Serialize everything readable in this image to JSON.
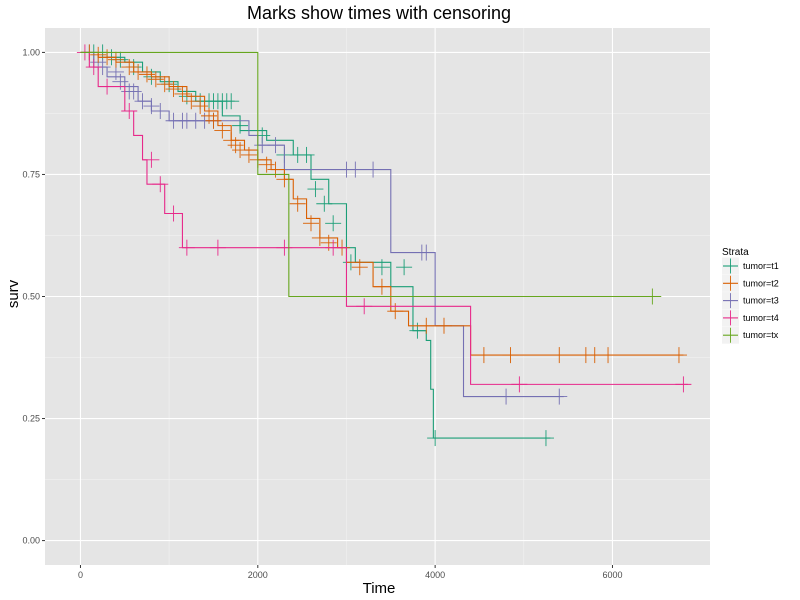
{
  "chart_data": {
    "type": "line",
    "title": "Marks show times with censoring",
    "xlabel": "Time",
    "ylabel": "surv",
    "xlim": [
      -400,
      7100
    ],
    "ylim": [
      -0.05,
      1.05
    ],
    "x_ticks": [
      0,
      2000,
      4000,
      6000
    ],
    "x_tick_labels": [
      "0",
      "2000",
      "4000",
      "6000"
    ],
    "y_ticks": [
      0,
      0.25,
      0.5,
      0.75,
      1.0
    ],
    "y_tick_labels": [
      "0.00",
      "0.25",
      "0.50",
      "0.75",
      "1.00"
    ],
    "grid": true,
    "legend": {
      "title": "Strata",
      "position": "right"
    },
    "series": [
      {
        "name": "tumor=t1",
        "color": "#1b9e77",
        "steps": [
          [
            0,
            1.0
          ],
          [
            300,
            0.99
          ],
          [
            500,
            0.98
          ],
          [
            700,
            0.96
          ],
          [
            900,
            0.94
          ],
          [
            1100,
            0.92
          ],
          [
            1300,
            0.9
          ],
          [
            1600,
            0.87
          ],
          [
            1800,
            0.84
          ],
          [
            2100,
            0.82
          ],
          [
            2400,
            0.79
          ],
          [
            2600,
            0.74
          ],
          [
            2800,
            0.69
          ],
          [
            3000,
            0.6
          ],
          [
            3100,
            0.57
          ],
          [
            3500,
            0.52
          ],
          [
            3750,
            0.43
          ],
          [
            3900,
            0.41
          ],
          [
            3950,
            0.31
          ],
          [
            3980,
            0.21
          ],
          [
            5300,
            0.21
          ]
        ],
        "censor": [
          [
            150,
            1.0
          ],
          [
            250,
            1.0
          ],
          [
            350,
            0.99
          ],
          [
            450,
            0.985
          ],
          [
            600,
            0.97
          ],
          [
            800,
            0.95
          ],
          [
            1000,
            0.935
          ],
          [
            1200,
            0.91
          ],
          [
            1350,
            0.9
          ],
          [
            1450,
            0.9
          ],
          [
            1500,
            0.9
          ],
          [
            1550,
            0.9
          ],
          [
            1600,
            0.9
          ],
          [
            1650,
            0.9
          ],
          [
            1700,
            0.9
          ],
          [
            1800,
            0.85
          ],
          [
            2050,
            0.83
          ],
          [
            2300,
            0.79
          ],
          [
            2450,
            0.79
          ],
          [
            2550,
            0.79
          ],
          [
            2650,
            0.72
          ],
          [
            2750,
            0.69
          ],
          [
            2850,
            0.65
          ],
          [
            3050,
            0.57
          ],
          [
            3400,
            0.56
          ],
          [
            3650,
            0.56
          ],
          [
            3800,
            0.43
          ],
          [
            4000,
            0.21
          ],
          [
            5250,
            0.21
          ]
        ]
      },
      {
        "name": "tumor=t2",
        "color": "#d95f02",
        "steps": [
          [
            0,
            1.0
          ],
          [
            200,
            0.99
          ],
          [
            400,
            0.98
          ],
          [
            600,
            0.96
          ],
          [
            800,
            0.95
          ],
          [
            1000,
            0.93
          ],
          [
            1200,
            0.91
          ],
          [
            1400,
            0.88
          ],
          [
            1550,
            0.85
          ],
          [
            1700,
            0.82
          ],
          [
            1850,
            0.8
          ],
          [
            2000,
            0.78
          ],
          [
            2150,
            0.76
          ],
          [
            2300,
            0.74
          ],
          [
            2400,
            0.7
          ],
          [
            2550,
            0.66
          ],
          [
            2700,
            0.62
          ],
          [
            2900,
            0.6
          ],
          [
            3000,
            0.57
          ],
          [
            3300,
            0.52
          ],
          [
            3500,
            0.47
          ],
          [
            3700,
            0.44
          ],
          [
            4100,
            0.44
          ],
          [
            4400,
            0.38
          ],
          [
            6800,
            0.38
          ]
        ],
        "censor": [
          [
            100,
            1.0
          ],
          [
            200,
            0.995
          ],
          [
            300,
            0.99
          ],
          [
            400,
            0.985
          ],
          [
            550,
            0.97
          ],
          [
            650,
            0.96
          ],
          [
            750,
            0.955
          ],
          [
            850,
            0.945
          ],
          [
            950,
            0.935
          ],
          [
            1050,
            0.925
          ],
          [
            1150,
            0.915
          ],
          [
            1250,
            0.9
          ],
          [
            1350,
            0.89
          ],
          [
            1450,
            0.87
          ],
          [
            1500,
            0.86
          ],
          [
            1600,
            0.84
          ],
          [
            1700,
            0.82
          ],
          [
            1750,
            0.81
          ],
          [
            1800,
            0.8
          ],
          [
            1900,
            0.79
          ],
          [
            2000,
            0.78
          ],
          [
            2100,
            0.77
          ],
          [
            2200,
            0.76
          ],
          [
            2300,
            0.74
          ],
          [
            2450,
            0.69
          ],
          [
            2600,
            0.65
          ],
          [
            2700,
            0.62
          ],
          [
            2800,
            0.61
          ],
          [
            2950,
            0.6
          ],
          [
            3150,
            0.56
          ],
          [
            3400,
            0.52
          ],
          [
            3550,
            0.47
          ],
          [
            3900,
            0.44
          ],
          [
            4100,
            0.44
          ],
          [
            4550,
            0.38
          ],
          [
            4850,
            0.38
          ],
          [
            5400,
            0.38
          ],
          [
            5700,
            0.38
          ],
          [
            5800,
            0.38
          ],
          [
            5950,
            0.38
          ],
          [
            6750,
            0.38
          ]
        ]
      },
      {
        "name": "tumor=t3",
        "color": "#7570b3",
        "steps": [
          [
            0,
            1.0
          ],
          [
            150,
            0.97
          ],
          [
            300,
            0.95
          ],
          [
            500,
            0.93
          ],
          [
            650,
            0.9
          ],
          [
            800,
            0.88
          ],
          [
            1000,
            0.86
          ],
          [
            1900,
            0.83
          ],
          [
            2000,
            0.81
          ],
          [
            2300,
            0.76
          ],
          [
            3450,
            0.76
          ],
          [
            3500,
            0.59
          ],
          [
            3950,
            0.59
          ],
          [
            4000,
            0.44
          ],
          [
            4300,
            0.44
          ],
          [
            4320,
            0.295
          ],
          [
            5450,
            0.295
          ]
        ],
        "censor": [
          [
            100,
            1.0
          ],
          [
            200,
            0.98
          ],
          [
            250,
            0.97
          ],
          [
            400,
            0.96
          ],
          [
            450,
            0.94
          ],
          [
            550,
            0.92
          ],
          [
            600,
            0.92
          ],
          [
            700,
            0.9
          ],
          [
            800,
            0.89
          ],
          [
            900,
            0.88
          ],
          [
            1050,
            0.86
          ],
          [
            1150,
            0.86
          ],
          [
            1200,
            0.86
          ],
          [
            1300,
            0.86
          ],
          [
            1400,
            0.86
          ],
          [
            1500,
            0.86
          ],
          [
            2050,
            0.81
          ],
          [
            2200,
            0.81
          ],
          [
            3000,
            0.76
          ],
          [
            3100,
            0.76
          ],
          [
            3300,
            0.76
          ],
          [
            3850,
            0.59
          ],
          [
            3900,
            0.59
          ],
          [
            4800,
            0.295
          ],
          [
            5400,
            0.295
          ]
        ]
      },
      {
        "name": "tumor=t4",
        "color": "#e7298a",
        "steps": [
          [
            0,
            1.0
          ],
          [
            100,
            0.97
          ],
          [
            200,
            0.93
          ],
          [
            500,
            0.88
          ],
          [
            600,
            0.83
          ],
          [
            700,
            0.78
          ],
          [
            750,
            0.73
          ],
          [
            950,
            0.67
          ],
          [
            1150,
            0.6
          ],
          [
            2950,
            0.6
          ],
          [
            3000,
            0.48
          ],
          [
            4350,
            0.48
          ],
          [
            4400,
            0.32
          ],
          [
            6850,
            0.32
          ]
        ],
        "censor": [
          [
            50,
            1.0
          ],
          [
            150,
            0.97
          ],
          [
            300,
            0.93
          ],
          [
            550,
            0.88
          ],
          [
            800,
            0.78
          ],
          [
            900,
            0.73
          ],
          [
            1050,
            0.67
          ],
          [
            1200,
            0.6
          ],
          [
            1550,
            0.6
          ],
          [
            2300,
            0.6
          ],
          [
            2850,
            0.6
          ],
          [
            3200,
            0.48
          ],
          [
            4950,
            0.32
          ],
          [
            6800,
            0.32
          ]
        ]
      },
      {
        "name": "tumor=tx",
        "color": "#66a61e",
        "steps": [
          [
            0,
            1.0
          ],
          [
            2000,
            1.0
          ],
          [
            2000,
            0.75
          ],
          [
            2350,
            0.75
          ],
          [
            2350,
            0.5
          ],
          [
            6550,
            0.5
          ]
        ],
        "censor": [
          [
            6450,
            0.5
          ]
        ]
      }
    ]
  }
}
